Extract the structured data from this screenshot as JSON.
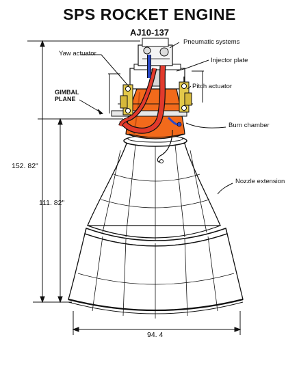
{
  "title": "SPS  ROCKET ENGINE",
  "subtitle": "AJ10-137",
  "labels": {
    "pneumatic": "Pneumatic systems",
    "injector": "Injector plate",
    "pitch": "Pitch actuator",
    "yaw": "Yaw actuator",
    "gimbal_line1": "GIMBAL",
    "gimbal_line2": "PLANE",
    "burn": "Burn chamber",
    "nozzle": "Nozzle extension"
  },
  "dimensions": {
    "overall_height": "152. 82\"",
    "nozzle_height": "111. 82\"",
    "exit_diameter": "94. 4"
  },
  "colors": {
    "burn_chamber": "#f26a1b",
    "feed_lines": "#e23a2c",
    "hydraulic": "#2a49c8",
    "actuators": "#e2c84a",
    "line": "#111111"
  }
}
